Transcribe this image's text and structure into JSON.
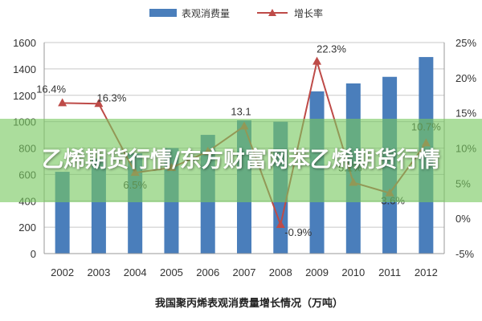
{
  "colors": {
    "bar": "#4a7ebb",
    "line": "#be4b48",
    "grid": "#c8c8c8",
    "axis": "#999999",
    "overlay": "#78c85f"
  },
  "chart_data": {
    "type": "bar",
    "categories": [
      "2002",
      "2003",
      "2004",
      "2005",
      "2006",
      "2007",
      "2008",
      "2009",
      "2010",
      "2011",
      "2012"
    ],
    "series": [
      {
        "name": "表观消费量",
        "type": "bar",
        "axis": "left",
        "values": [
          620,
          720,
          760,
          800,
          900,
          1010,
          1000,
          1230,
          1290,
          1340,
          1490
        ]
      },
      {
        "name": "增长率",
        "type": "line",
        "axis": "right",
        "values": [
          16.4,
          16.3,
          6.5,
          7.2,
          9.5,
          13.1,
          -0.9,
          22.3,
          5.1,
          3.6,
          10.7
        ],
        "labels": [
          "16.4%",
          "16.3%",
          "6.5%",
          "",
          "",
          "13.1",
          "-0.9%",
          "22.3%",
          "5.1%",
          "3.6%",
          "10.7%"
        ]
      }
    ],
    "y_left": {
      "ylim": [
        0,
        1600
      ],
      "ticks": [
        "0",
        "200",
        "400",
        "600",
        "800",
        "1000",
        "1200",
        "1400",
        "1600"
      ]
    },
    "y_right": {
      "ylim": [
        -5,
        25
      ],
      "ticks": [
        "-5%",
        "0%",
        "5%",
        "10%",
        "15%",
        "20%",
        "25%"
      ]
    },
    "legend_position": "top-center",
    "grid": true,
    "caption": "我国聚丙烯表观消费量增长情况（万吨）"
  },
  "overlay": {
    "title": "乙烯期货行情/东方财富网苯乙烯期货行情"
  }
}
